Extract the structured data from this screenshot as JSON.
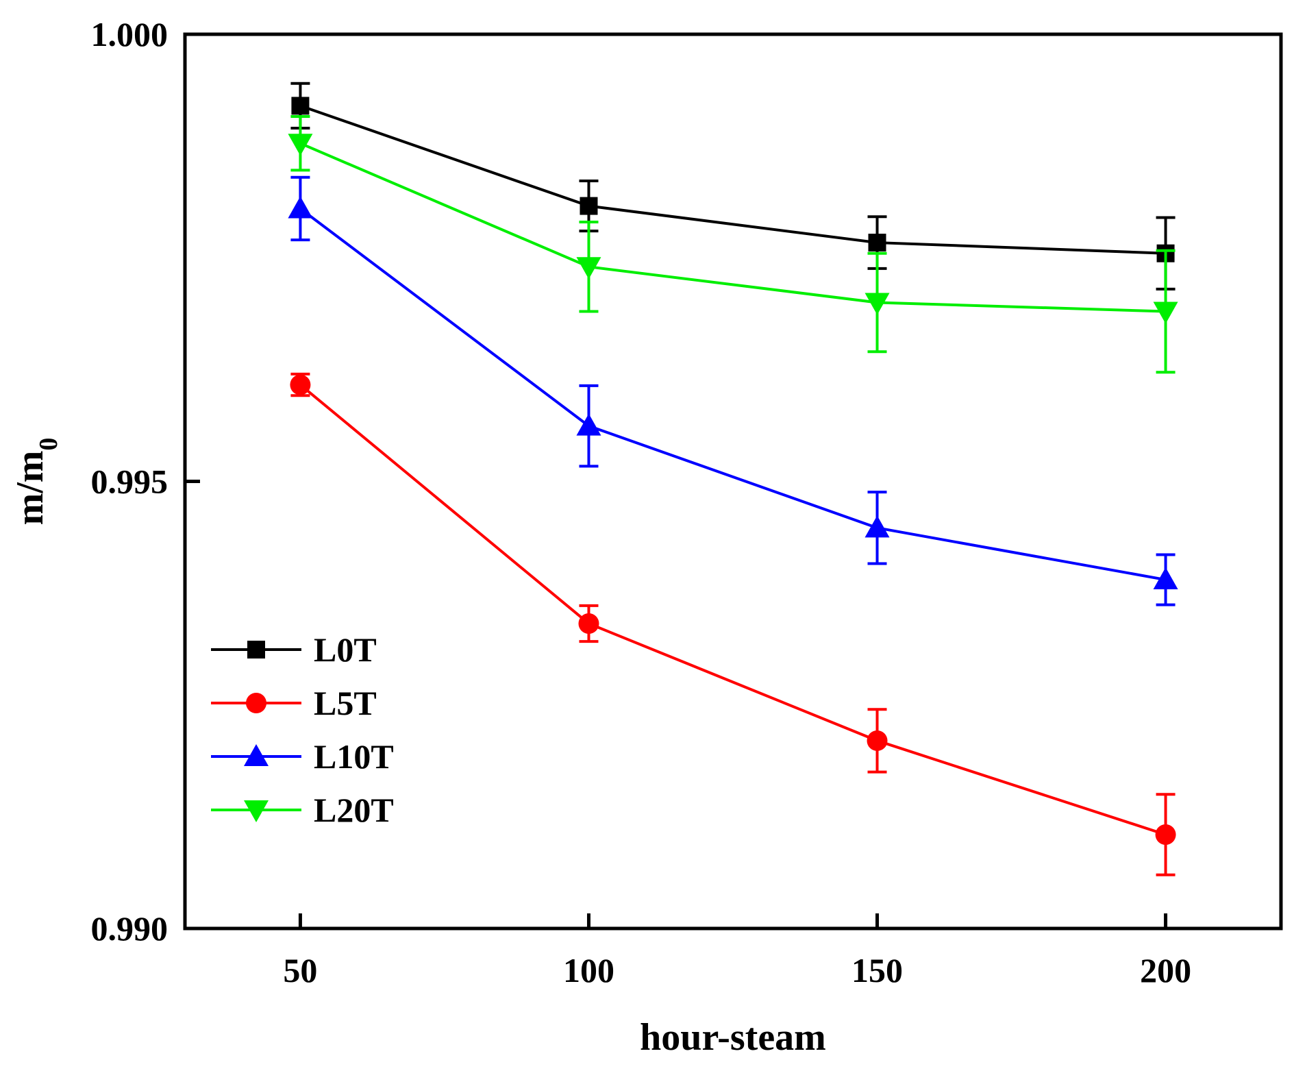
{
  "chart_data": {
    "type": "line",
    "title": "",
    "xlabel": "hour-steam",
    "ylabel_main": "m/m",
    "ylabel_sub": "0",
    "x": [
      50,
      100,
      150,
      200
    ],
    "xlim": [
      30,
      220
    ],
    "ylim": [
      0.99,
      1.0
    ],
    "xticks": [
      50,
      100,
      150,
      200
    ],
    "xtick_labels": [
      "50",
      "100",
      "150",
      "200"
    ],
    "yticks": [
      0.99,
      0.995,
      1.0
    ],
    "ytick_labels": [
      "0.990",
      "0.995",
      "1.000"
    ],
    "grid": false,
    "legend_position": "bottom-left",
    "series": [
      {
        "name": "L0T",
        "color": "#000000",
        "marker": "square",
        "values": [
          0.9992,
          0.99808,
          0.99767,
          0.99755
        ],
        "errors": [
          0.00025,
          0.00028,
          0.00029,
          0.0004
        ]
      },
      {
        "name": "L5T",
        "color": "#ff0000",
        "marker": "circle",
        "values": [
          0.99608,
          0.99341,
          0.9921,
          0.99105
        ],
        "errors": [
          0.00012,
          0.0002,
          0.00035,
          0.00045
        ]
      },
      {
        "name": "L10T",
        "color": "#0000ff",
        "marker": "triangle-up",
        "values": [
          0.99805,
          0.99562,
          0.99448,
          0.9939
        ],
        "errors": [
          0.00035,
          0.00045,
          0.0004,
          0.00028
        ]
      },
      {
        "name": "L20T",
        "color": "#00ee00",
        "marker": "triangle-down",
        "values": [
          0.99878,
          0.9974,
          0.997,
          0.9969
        ],
        "errors": [
          0.0003,
          0.0005,
          0.00055,
          0.00068
        ]
      }
    ]
  }
}
